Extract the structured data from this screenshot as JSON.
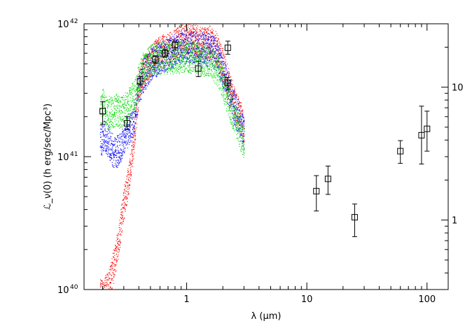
{
  "chart_data": {
    "type": "scatter",
    "title": "",
    "xlabel": "λ    (μm)",
    "ylabel": "ℒ_ν(0)    (h erg/sec/Mpc³)",
    "x_scale": "log",
    "y_scale": "log",
    "xlim": [
      0.14,
      150
    ],
    "ylim": [
      1e+40,
      1e+42
    ],
    "y2lim": [
      0.3,
      30
    ],
    "grid": false,
    "legend": "none",
    "x_ticks": [
      {
        "value": 1,
        "label": "1"
      },
      {
        "value": 10,
        "label": "10"
      },
      {
        "value": 100,
        "label": "100"
      }
    ],
    "y_ticks": [
      {
        "value": 1e+40,
        "label": "10",
        "exp": "40"
      },
      {
        "value": 1e+41,
        "label": "10",
        "exp": "41"
      },
      {
        "value": 1e+42,
        "label": "10",
        "exp": "42"
      }
    ],
    "y2_ticks": [
      {
        "value": 1,
        "label": "1"
      },
      {
        "value": 10,
        "label": "10"
      }
    ],
    "observations": [
      {
        "x": 0.2,
        "y": 2.2e+41,
        "err_lo": 1.75e+41,
        "err_hi": 2.6e+41
      },
      {
        "x": 0.32,
        "y": 1.78e+41,
        "err_lo": 1.6e+41,
        "err_hi": 2e+41
      },
      {
        "x": 0.41,
        "y": 3.7e+41,
        "err_lo": 3.45e+41,
        "err_hi": 4e+41
      },
      {
        "x": 0.55,
        "y": 5.4e+41,
        "err_lo": 5.05e+41,
        "err_hi": 5.75e+41
      },
      {
        "x": 0.66,
        "y": 6e+41,
        "err_lo": 5.6e+41,
        "err_hi": 6.4e+41
      },
      {
        "x": 0.8,
        "y": 6.9e+41,
        "err_lo": 6.35e+41,
        "err_hi": 7.4e+41
      },
      {
        "x": 1.25,
        "y": 4.6e+41,
        "err_lo": 4e+41,
        "err_hi": 5.2e+41
      },
      {
        "x": 2.2,
        "y": 6.6e+41,
        "err_lo": 5.9e+41,
        "err_hi": 7.4e+41
      },
      {
        "x": 2.2,
        "y": 3.6e+41,
        "err_lo": 3.2e+41,
        "err_hi": 3.95e+41
      },
      {
        "x": 12,
        "y": 5.5e+40,
        "err_lo": 3.9e+40,
        "err_hi": 7.2e+40
      },
      {
        "x": 15,
        "y": 6.8e+40,
        "err_lo": 5.2e+40,
        "err_hi": 8.5e+40
      },
      {
        "x": 25,
        "y": 3.5e+40,
        "err_lo": 2.5e+40,
        "err_hi": 4.4e+40
      },
      {
        "x": 60,
        "y": 1.1e+41,
        "err_lo": 8.9e+40,
        "err_hi": 1.32e+41
      },
      {
        "x": 90,
        "y": 1.45e+41,
        "err_lo": 8.8e+40,
        "err_hi": 2.4e+41
      },
      {
        "x": 100,
        "y": 1.62e+41,
        "err_lo": 1.1e+41,
        "err_hi": 2.2e+41
      }
    ],
    "series": [
      {
        "color": "#ff0000",
        "x": [
          0.19,
          0.22,
          0.25,
          0.28,
          0.3,
          0.33,
          0.36,
          0.38,
          0.4,
          0.42,
          0.45,
          0.5,
          0.55,
          0.6,
          0.65,
          0.7,
          0.8,
          0.9,
          1.0,
          1.2,
          1.4,
          1.6,
          1.8,
          2.0,
          2.2,
          2.5,
          2.8,
          3.0
        ],
        "y": [
          9e+39,
          1e+40,
          1.6e+40,
          2.9e+40,
          4.5e+40,
          7e+40,
          1.25e+41,
          2.1e+41,
          3.4e+41,
          4.1e+41,
          4.7e+41,
          5.2e+41,
          5.8e+41,
          6.1e+41,
          6.3e+41,
          6.5e+41,
          7.1e+41,
          7.5e+41,
          7.8e+41,
          7.4e+41,
          7.2e+41,
          7.3e+41,
          6.3e+41,
          4.8e+41,
          3.6e+41,
          2.5e+41,
          1.95e+41,
          1.6e+41
        ],
        "band": 0.12
      },
      {
        "color": "#0000ff",
        "x": [
          0.19,
          0.21,
          0.23,
          0.25,
          0.27,
          0.29,
          0.31,
          0.33,
          0.35,
          0.37,
          0.39,
          0.42,
          0.45,
          0.5,
          0.55,
          0.6,
          0.65,
          0.7,
          0.8,
          0.9,
          1.0,
          1.2,
          1.4,
          1.6,
          1.8,
          2.0,
          2.2,
          2.5,
          2.8,
          3.0
        ],
        "y": [
          1.3e+41,
          1.45e+41,
          1.22e+41,
          1.08e+41,
          1.1e+41,
          1.25e+41,
          1.48e+41,
          1.62e+41,
          1.65e+41,
          2.15e+41,
          2.95e+41,
          3.75e+41,
          4.3e+41,
          4.9e+41,
          5.3e+41,
          5.6e+41,
          5.8e+41,
          5.9e+41,
          6.3e+41,
          6.6e+41,
          6.8e+41,
          6.6e+41,
          6.4e+41,
          6.5e+41,
          5.6e+41,
          4.3e+41,
          3.3e+41,
          2.3e+41,
          1.75e+41,
          1.5e+41
        ],
        "band": 0.12
      },
      {
        "color": "#00dd00",
        "x": [
          0.19,
          0.2,
          0.22,
          0.24,
          0.26,
          0.28,
          0.3,
          0.32,
          0.34,
          0.36,
          0.38,
          0.4,
          0.43,
          0.46,
          0.5,
          0.55,
          0.6,
          0.65,
          0.7,
          0.8,
          0.9,
          1.0,
          1.2,
          1.4,
          1.6,
          1.8,
          2.0,
          2.2,
          2.5,
          2.8,
          3.0
        ],
        "y": [
          2.25e+41,
          2.5e+41,
          2.15e+41,
          2.15e+41,
          2.25e+41,
          2.15e+41,
          2.2e+41,
          2.35e+41,
          2.6e+41,
          2.8e+41,
          3.25e+41,
          3.85e+41,
          4.6e+41,
          5e+41,
          5.3e+41,
          5.4e+41,
          5.5e+41,
          5.55e+41,
          5.6e+41,
          5.6e+41,
          5.7e+41,
          5.75e+41,
          5.55e+41,
          5.3e+41,
          5.2e+41,
          4.5e+41,
          3.5e+41,
          2.7e+41,
          1.95e+41,
          1.5e+41,
          1.25e+41
        ],
        "band": 0.12
      }
    ]
  }
}
